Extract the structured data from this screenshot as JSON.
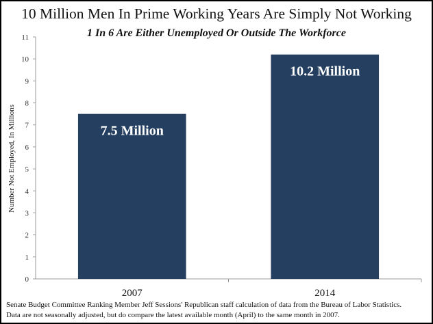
{
  "chart_data": {
    "type": "bar",
    "title": "10 Million Men In Prime Working Years Are Simply Not Working",
    "subtitle": "1 In 6 Are Either Unemployed Or Outside The Workforce",
    "xlabel": "",
    "ylabel": "Number Not Employed, In Millions",
    "categories": [
      "2007",
      "2014"
    ],
    "values": [
      7.5,
      10.2
    ],
    "data_labels": [
      "7.5 Million",
      "10.2 Million"
    ],
    "ylim": [
      0,
      11
    ],
    "yticks": [
      0,
      1,
      2,
      3,
      4,
      5,
      6,
      7,
      8,
      9,
      10,
      11
    ],
    "grid": false,
    "bar_color": "#243f60",
    "footnote": [
      "Senate Budget Committee Ranking Member Jeff Sessions' Republican staff calculation of data from the Bureau of Labor Statistics.",
      "Data are not seasonally adjusted, but do compare the latest available month (April) to the same month in 2007."
    ]
  }
}
